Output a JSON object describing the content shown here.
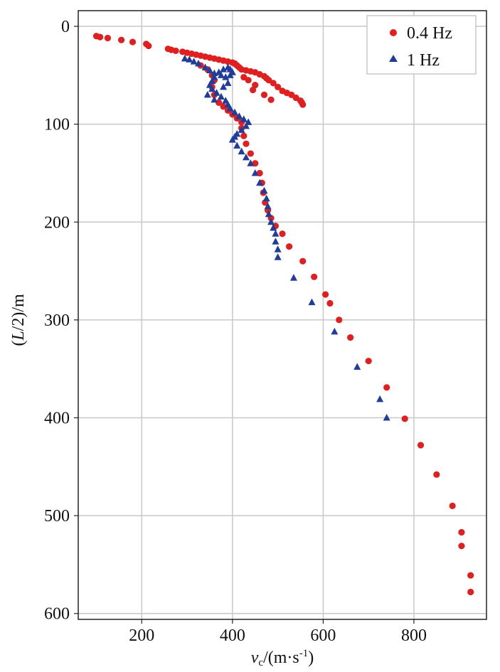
{
  "chart_data": {
    "type": "scatter",
    "title": "",
    "xlabel": "v_c/(m·s⁻¹)",
    "xlabel_parts": {
      "var": "v",
      "sub": "c",
      "units": "/(m·s",
      "exp": "-1",
      "close": ")"
    },
    "ylabel": "(L/2)/m",
    "ylabel_parts": {
      "open": "(",
      "var": "L",
      "rest": "/2)/m"
    },
    "xlim": [
      60,
      960
    ],
    "ylim": [
      606,
      -16
    ],
    "y_inverted": true,
    "x_ticks": [
      200,
      400,
      600,
      800
    ],
    "y_ticks": [
      0,
      100,
      200,
      300,
      400,
      500,
      600
    ],
    "grid": true,
    "legend_position": "top-right",
    "series": [
      {
        "name": "0.4 Hz",
        "marker": "circle",
        "color": "#e02020",
        "points": [
          [
            100,
            10
          ],
          [
            108,
            11
          ],
          [
            125,
            12
          ],
          [
            155,
            14
          ],
          [
            180,
            16
          ],
          [
            210,
            18
          ],
          [
            215,
            20
          ],
          [
            258,
            23
          ],
          [
            265,
            24
          ],
          [
            275,
            25
          ],
          [
            290,
            26
          ],
          [
            300,
            27
          ],
          [
            310,
            28
          ],
          [
            320,
            29
          ],
          [
            330,
            30
          ],
          [
            340,
            31
          ],
          [
            350,
            32
          ],
          [
            360,
            33
          ],
          [
            370,
            34
          ],
          [
            380,
            35
          ],
          [
            390,
            36
          ],
          [
            400,
            37
          ],
          [
            405,
            38
          ],
          [
            410,
            40
          ],
          [
            415,
            42
          ],
          [
            420,
            44
          ],
          [
            430,
            45
          ],
          [
            440,
            46
          ],
          [
            450,
            47
          ],
          [
            460,
            49
          ],
          [
            470,
            51
          ],
          [
            475,
            53
          ],
          [
            480,
            55
          ],
          [
            490,
            58
          ],
          [
            500,
            62
          ],
          [
            510,
            66
          ],
          [
            520,
            68
          ],
          [
            530,
            70
          ],
          [
            540,
            73
          ],
          [
            550,
            76
          ],
          [
            553,
            78
          ],
          [
            555,
            80
          ],
          [
            330,
            40
          ],
          [
            345,
            44
          ],
          [
            355,
            50
          ],
          [
            360,
            55
          ],
          [
            355,
            62
          ],
          [
            360,
            70
          ],
          [
            370,
            78
          ],
          [
            380,
            82
          ],
          [
            390,
            86
          ],
          [
            400,
            90
          ],
          [
            410,
            94
          ],
          [
            420,
            98
          ],
          [
            420,
            104
          ],
          [
            425,
            112
          ],
          [
            430,
            120
          ],
          [
            440,
            130
          ],
          [
            450,
            140
          ],
          [
            460,
            150
          ],
          [
            465,
            160
          ],
          [
            468,
            170
          ],
          [
            472,
            180
          ],
          [
            478,
            188
          ],
          [
            485,
            196
          ],
          [
            495,
            204
          ],
          [
            510,
            212
          ],
          [
            525,
            225
          ],
          [
            555,
            240
          ],
          [
            580,
            256
          ],
          [
            605,
            274
          ],
          [
            615,
            283
          ],
          [
            635,
            300
          ],
          [
            660,
            318
          ],
          [
            700,
            342
          ],
          [
            740,
            369
          ],
          [
            780,
            401
          ],
          [
            815,
            428
          ],
          [
            850,
            458
          ],
          [
            885,
            490
          ],
          [
            905,
            517
          ],
          [
            905,
            531
          ],
          [
            925,
            561
          ],
          [
            925,
            578
          ],
          [
            435,
            55
          ],
          [
            450,
            60
          ],
          [
            470,
            70
          ],
          [
            485,
            75
          ],
          [
            445,
            65
          ],
          [
            425,
            52
          ]
        ]
      },
      {
        "name": "1 Hz",
        "marker": "triangle",
        "color": "#1f3d99",
        "points": [
          [
            295,
            33
          ],
          [
            305,
            34
          ],
          [
            315,
            36
          ],
          [
            325,
            38
          ],
          [
            340,
            42
          ],
          [
            350,
            45
          ],
          [
            360,
            48
          ],
          [
            375,
            50
          ],
          [
            385,
            52
          ],
          [
            395,
            50
          ],
          [
            400,
            47
          ],
          [
            395,
            44
          ],
          [
            390,
            42
          ],
          [
            380,
            44
          ],
          [
            370,
            47
          ],
          [
            360,
            52
          ],
          [
            355,
            56
          ],
          [
            350,
            60
          ],
          [
            355,
            64
          ],
          [
            365,
            68
          ],
          [
            375,
            72
          ],
          [
            385,
            76
          ],
          [
            390,
            80
          ],
          [
            395,
            84
          ],
          [
            405,
            88
          ],
          [
            415,
            92
          ],
          [
            425,
            95
          ],
          [
            435,
            98
          ],
          [
            430,
            102
          ],
          [
            420,
            106
          ],
          [
            410,
            110
          ],
          [
            405,
            113
          ],
          [
            400,
            116
          ],
          [
            410,
            122
          ],
          [
            420,
            128
          ],
          [
            430,
            134
          ],
          [
            440,
            140
          ],
          [
            450,
            150
          ],
          [
            460,
            160
          ],
          [
            470,
            168
          ],
          [
            475,
            176
          ],
          [
            478,
            184
          ],
          [
            480,
            192
          ],
          [
            485,
            200
          ],
          [
            490,
            206
          ],
          [
            495,
            212
          ],
          [
            495,
            220
          ],
          [
            500,
            228
          ],
          [
            500,
            236
          ],
          [
            535,
            257
          ],
          [
            575,
            282
          ],
          [
            625,
            312
          ],
          [
            675,
            348
          ],
          [
            725,
            381
          ],
          [
            740,
            400
          ],
          [
            345,
            70
          ],
          [
            360,
            75
          ],
          [
            380,
            62
          ],
          [
            390,
            58
          ]
        ]
      }
    ]
  }
}
